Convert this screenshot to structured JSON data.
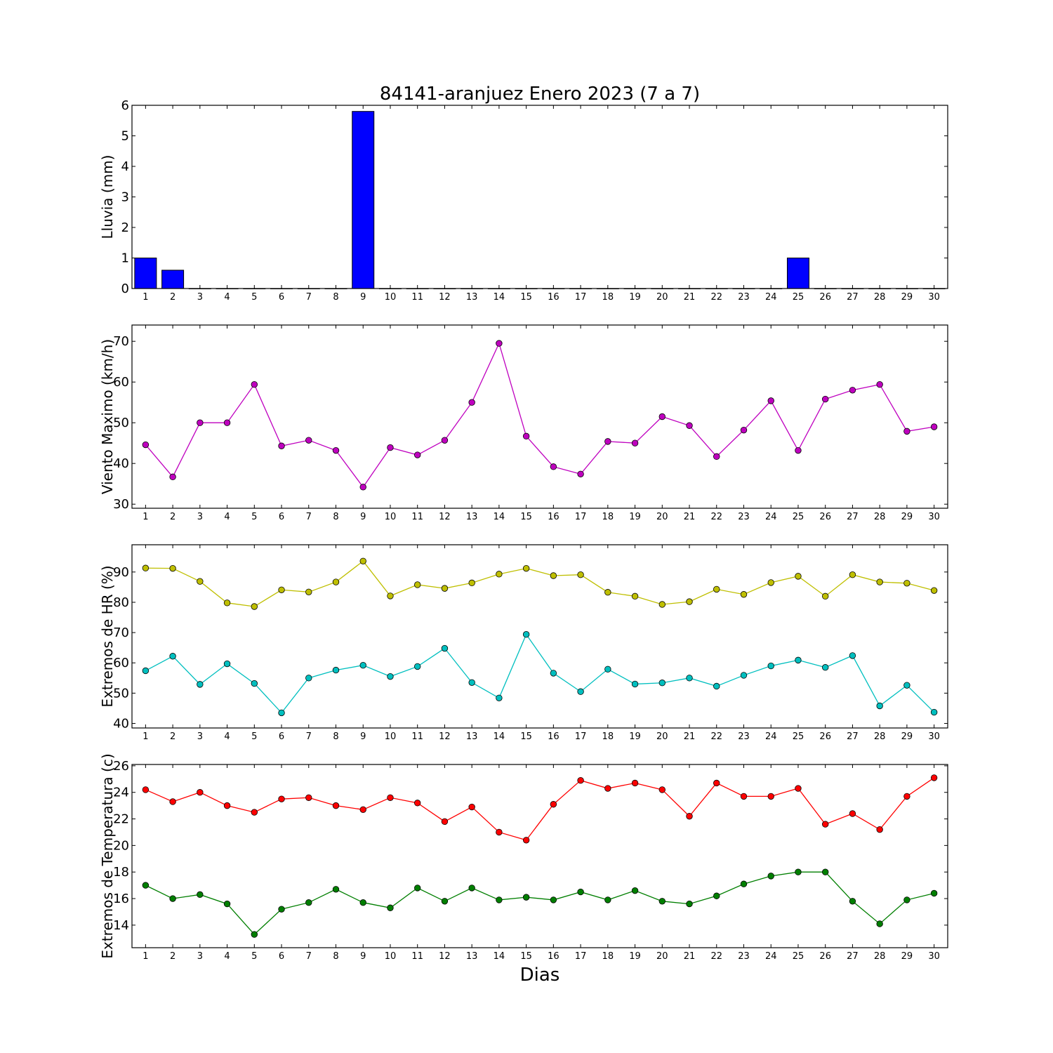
{
  "chart_data": {
    "title": "84141-aranjuez Enero 2023  (7 a 7)",
    "xlabel": "Dias",
    "days": [
      1,
      2,
      3,
      4,
      5,
      6,
      7,
      8,
      9,
      10,
      11,
      12,
      13,
      14,
      15,
      16,
      17,
      18,
      19,
      20,
      21,
      22,
      23,
      24,
      25,
      26,
      27,
      28,
      29,
      30
    ],
    "panels": [
      {
        "type": "bar",
        "ylabel": "Lluvia (mm)",
        "ylim": [
          0,
          6
        ],
        "yticks": [
          0,
          1,
          2,
          3,
          4,
          5,
          6
        ],
        "series": [
          {
            "color": "#0000ff",
            "values": [
              1.0,
              0.6,
              0,
              0,
              0,
              0,
              0,
              0,
              5.8,
              0,
              0,
              0,
              0,
              0,
              0,
              0,
              0,
              0,
              0,
              0,
              0,
              0,
              0,
              0,
              1.0,
              0,
              0,
              0,
              0,
              0
            ]
          }
        ]
      },
      {
        "type": "line",
        "ylabel": "Viento Maximo (km/h)",
        "ylim": [
          29,
          74
        ],
        "yticks": [
          30,
          40,
          50,
          60,
          70
        ],
        "series": [
          {
            "color": "#bf00bf",
            "values": [
              44.6,
              36.7,
              50.0,
              50.0,
              59.4,
              44.3,
              45.7,
              43.2,
              34.2,
              43.9,
              42.1,
              45.7,
              55.0,
              69.5,
              46.7,
              39.2,
              37.4,
              45.4,
              45.0,
              51.5,
              49.3,
              41.7,
              48.2,
              55.4,
              43.2,
              55.8,
              58.0,
              59.4,
              47.9,
              49.0
            ]
          }
        ]
      },
      {
        "type": "line",
        "ylabel": "Extremos de HR (%)",
        "ylim": [
          38.5,
          99
        ],
        "yticks": [
          40,
          50,
          60,
          70,
          80,
          90
        ],
        "series": [
          {
            "color": "#bfbf00",
            "values": [
              91.3,
              91.2,
              86.9,
              79.8,
              78.6,
              84.1,
              83.4,
              86.7,
              93.6,
              82.1,
              85.8,
              84.6,
              86.4,
              89.3,
              91.2,
              88.8,
              89.1,
              83.3,
              82.0,
              79.3,
              80.2,
              84.3,
              82.6,
              86.5,
              88.6,
              82.0,
              89.1,
              86.7,
              86.3,
              83.9
            ]
          },
          {
            "color": "#00bfbf",
            "values": [
              57.4,
              62.2,
              52.9,
              59.7,
              53.2,
              43.5,
              55.0,
              57.6,
              59.2,
              55.5,
              58.8,
              64.8,
              53.5,
              48.4,
              69.4,
              56.6,
              50.5,
              57.9,
              53.0,
              53.4,
              55.0,
              52.3,
              55.9,
              59.0,
              60.9,
              58.5,
              62.4,
              45.8,
              52.6,
              43.7
            ]
          }
        ]
      },
      {
        "type": "line",
        "ylabel": "Extremos de Temperatura (c)",
        "ylim": [
          12.3,
          26.1
        ],
        "yticks": [
          14,
          16,
          18,
          20,
          22,
          24,
          26
        ],
        "series": [
          {
            "color": "#ff0000",
            "values": [
              24.2,
              23.3,
              24.0,
              23.0,
              22.5,
              23.5,
              23.6,
              23.0,
              22.7,
              23.6,
              23.2,
              21.8,
              22.9,
              21.0,
              20.4,
              23.1,
              24.9,
              24.3,
              24.7,
              24.2,
              22.2,
              24.7,
              23.7,
              23.7,
              24.3,
              21.6,
              22.4,
              21.2,
              23.7,
              25.1
            ]
          },
          {
            "color": "#007f00",
            "values": [
              17.0,
              16.0,
              16.3,
              15.6,
              13.3,
              15.2,
              15.7,
              16.7,
              15.7,
              15.3,
              16.8,
              15.8,
              16.8,
              15.9,
              16.1,
              15.9,
              16.5,
              15.9,
              16.6,
              15.8,
              15.6,
              16.2,
              17.1,
              17.7,
              18.0,
              18.0,
              15.8,
              14.1,
              15.9,
              16.4
            ]
          }
        ]
      }
    ]
  }
}
